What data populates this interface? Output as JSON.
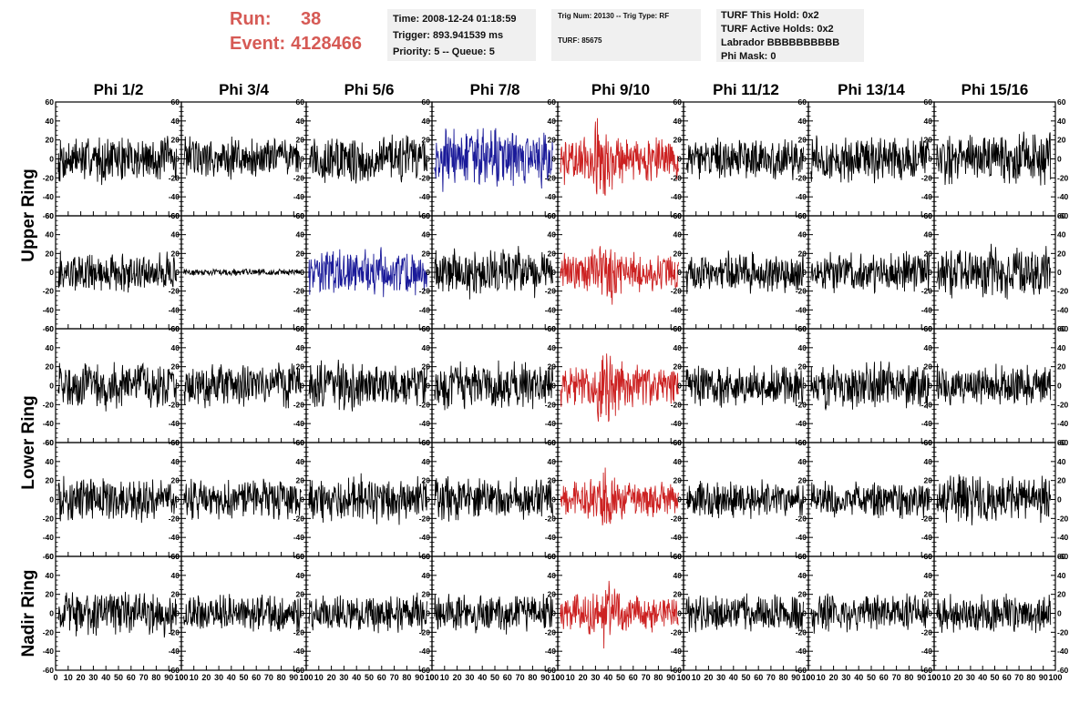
{
  "header": {
    "run_label": "Run:",
    "run_value": "38",
    "event_label": "Event:",
    "event_value": "4128466"
  },
  "info_time": {
    "time": "Time: 2008-12-24 01:18:59",
    "trigger": "Trigger: 893.941539 ms",
    "priority": "Priority: 5 -- Queue: 5"
  },
  "info_trig": {
    "trig": "Trig Num: 20130 -- Trig Type: RF",
    "turf": "TURF: 85675"
  },
  "info_turf": {
    "this_hold": "TURF This Hold: 0x2",
    "active_holds": "TURF Active Holds: 0x2",
    "labrador": "Labrador BBBBBBBBBB",
    "phi_mask": "Phi Mask: 0"
  },
  "colors": {
    "normal_trace": "#000000",
    "triggered_trace": "#cc2222",
    "highlighted_trace": "#1a1a99",
    "header_red": "#d65a55"
  },
  "chart_data": {
    "type": "line",
    "columns": [
      "Phi 1/2",
      "Phi 3/4",
      "Phi 5/6",
      "Phi 7/8",
      "Phi 9/10",
      "Phi 11/12",
      "Phi 13/14",
      "Phi 15/16"
    ],
    "rows": [
      "Upper Ring",
      "Upper Ring",
      "Lower Ring",
      "Lower Ring",
      "Nadir Ring"
    ],
    "row_labels": [
      {
        "label": "Upper Ring",
        "spans_rows": [
          0,
          1
        ]
      },
      {
        "label": "Lower Ring",
        "spans_rows": [
          2,
          3
        ]
      },
      {
        "label": "Nadir Ring",
        "spans_rows": [
          4
        ]
      }
    ],
    "xlim": [
      0,
      100
    ],
    "ylim": [
      -60,
      60
    ],
    "x_ticks": [
      0,
      10,
      20,
      30,
      40,
      50,
      60,
      70,
      80,
      90,
      100
    ],
    "y_ticks": [
      -60,
      -40,
      -20,
      0,
      20,
      40,
      60
    ],
    "samples_per_trace": 256,
    "amplitude_grid": [
      [
        28,
        26,
        30,
        36,
        40,
        24,
        28,
        30
      ],
      [
        24,
        4,
        28,
        30,
        32,
        24,
        24,
        32
      ],
      [
        28,
        26,
        28,
        28,
        36,
        26,
        28,
        24
      ],
      [
        26,
        24,
        28,
        26,
        30,
        22,
        22,
        28
      ],
      [
        26,
        22,
        22,
        24,
        30,
        22,
        22,
        24
      ]
    ],
    "color_grid": [
      [
        "normal",
        "normal",
        "normal",
        "highlighted",
        "triggered",
        "normal",
        "normal",
        "normal"
      ],
      [
        "normal",
        "normal",
        "highlighted",
        "normal",
        "triggered",
        "normal",
        "normal",
        "normal"
      ],
      [
        "normal",
        "normal",
        "normal",
        "normal",
        "triggered",
        "normal",
        "normal",
        "normal"
      ],
      [
        "normal",
        "normal",
        "normal",
        "normal",
        "triggered",
        "normal",
        "normal",
        "normal"
      ],
      [
        "normal",
        "normal",
        "normal",
        "normal",
        "triggered",
        "normal",
        "normal",
        "normal"
      ]
    ]
  }
}
